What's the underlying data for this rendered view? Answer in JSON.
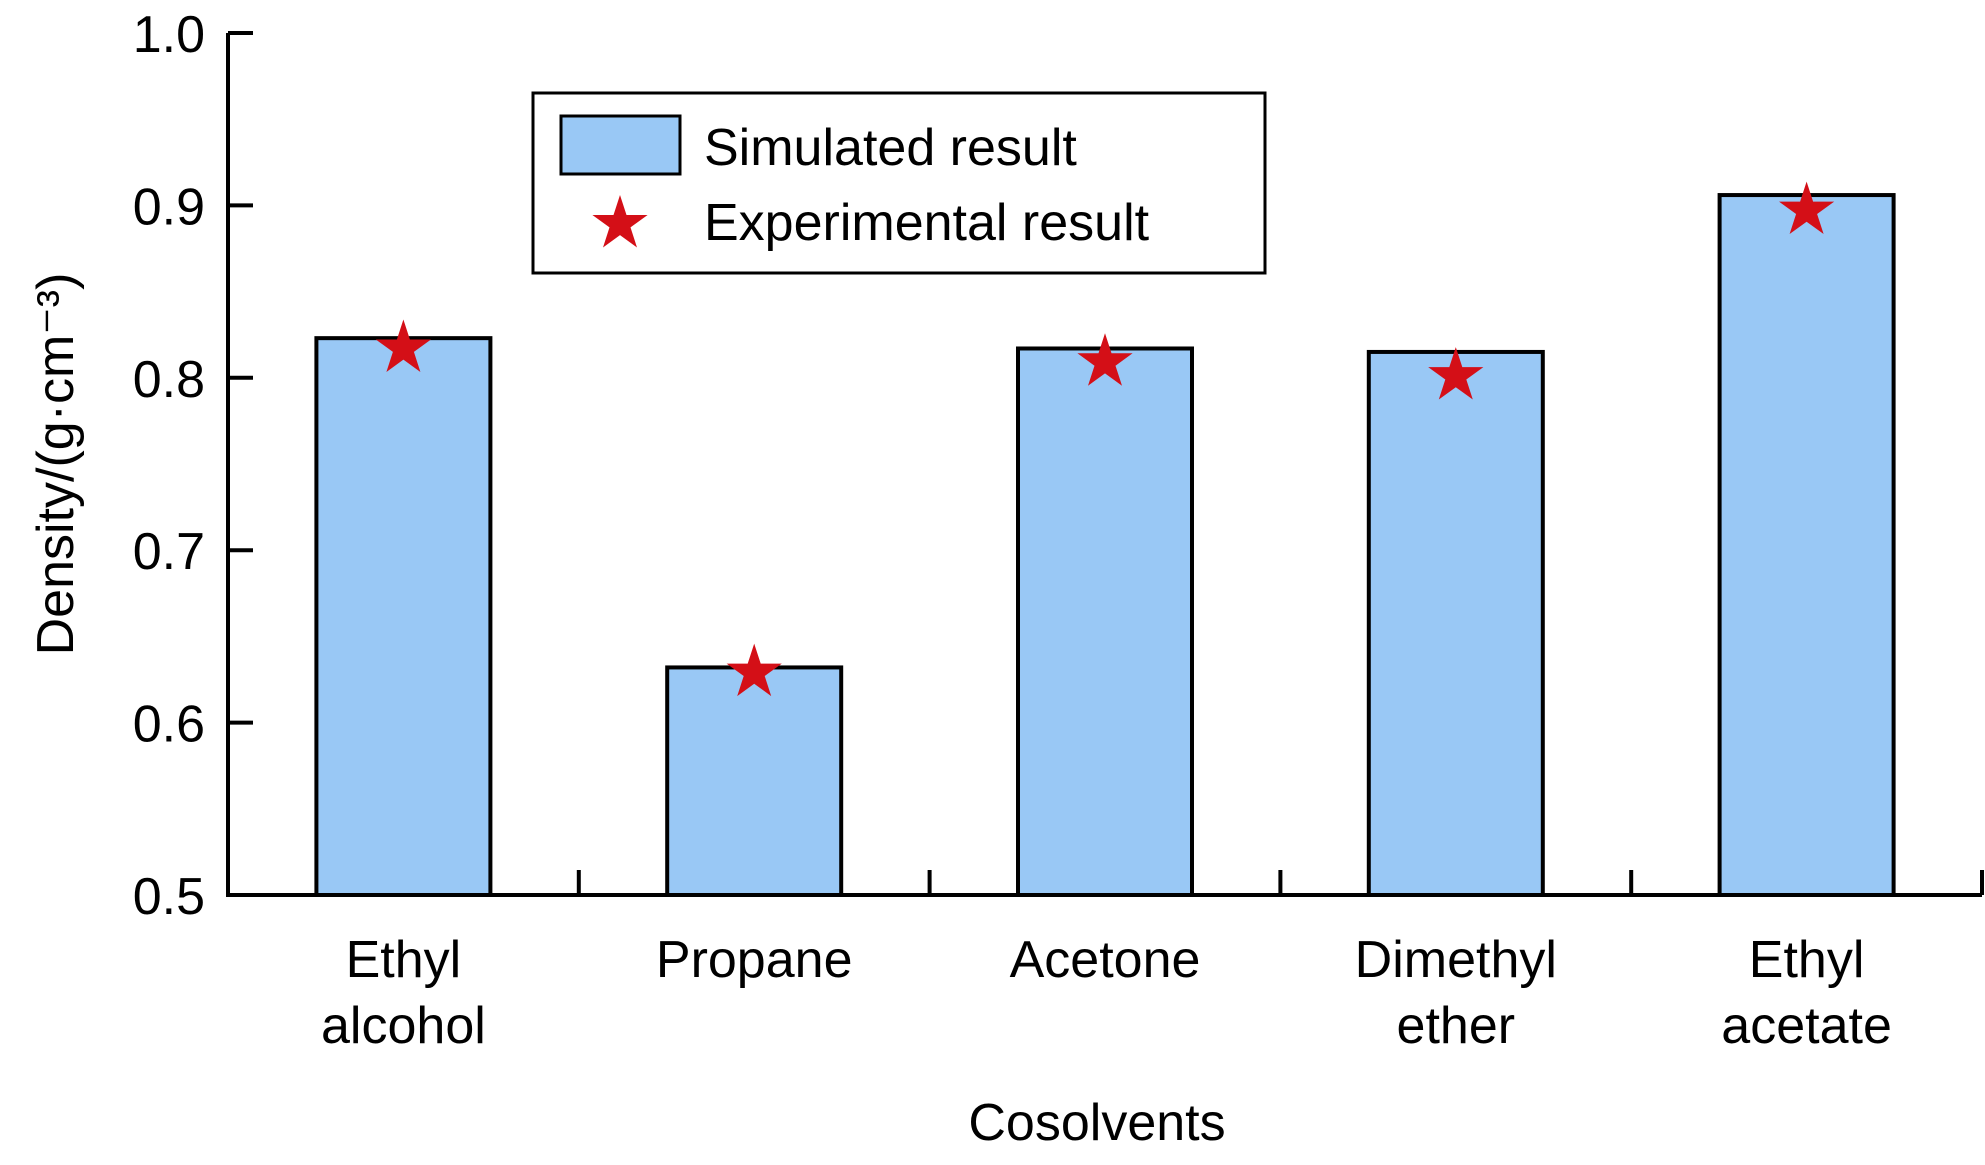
{
  "chart_data": {
    "type": "bar",
    "title": "",
    "xlabel": "Cosolvents",
    "ylabel": "Density/(g·cm⁻³)",
    "ylim": [
      0.5,
      1.0
    ],
    "yticks": [
      0.5,
      0.6,
      0.7,
      0.8,
      0.9,
      1.0
    ],
    "ytick_labels": [
      "0.5",
      "0.6",
      "0.7",
      "0.8",
      "0.9",
      "1.0"
    ],
    "grid": false,
    "legend_position": "top-center",
    "categories": [
      [
        "Ethyl",
        "alcohol"
      ],
      [
        "Propane"
      ],
      [
        "Acetone"
      ],
      [
        "Dimethyl",
        "ether"
      ],
      [
        "Ethyl",
        "acetate"
      ]
    ],
    "series": [
      {
        "name": "Simulated result",
        "kind": "bar",
        "color": "#99c8f5",
        "values": [
          0.823,
          0.632,
          0.817,
          0.815,
          0.906
        ]
      },
      {
        "name": "Experimental result",
        "kind": "star-marker",
        "color": "#d40f17",
        "values": [
          0.817,
          0.629,
          0.809,
          0.801,
          0.897
        ]
      }
    ]
  }
}
